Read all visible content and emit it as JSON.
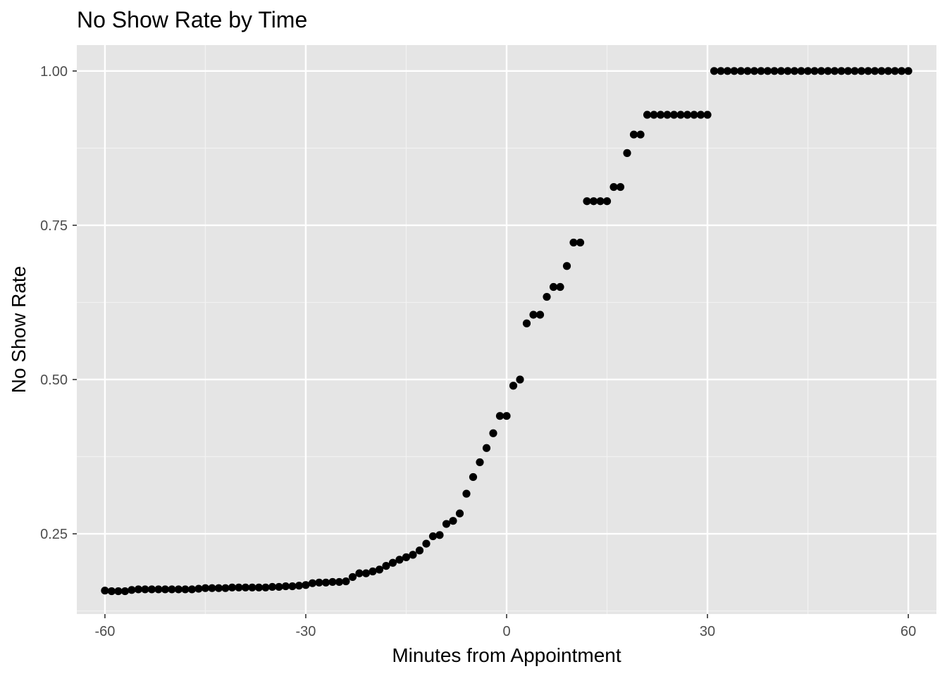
{
  "chart_data": {
    "type": "scatter",
    "title": "No Show Rate by Time",
    "xlabel": "Minutes from Appointment",
    "ylabel": "No Show Rate",
    "xlim": [
      -64.2,
      64.2
    ],
    "ylim": [
      0.12,
      1.042
    ],
    "x_ticks": [
      -60,
      -30,
      0,
      30,
      60
    ],
    "x_tick_labels": [
      "-60",
      "-30",
      "0",
      "30",
      "60"
    ],
    "y_ticks": [
      0.25,
      0.5,
      0.75,
      1.0
    ],
    "y_tick_labels": [
      "0.25",
      "0.50",
      "0.75",
      "1.00"
    ],
    "grid": true,
    "point_color": "#000000",
    "panel_color": "#e5e5e5",
    "points": [
      [
        -60,
        0.158
      ],
      [
        -59,
        0.157
      ],
      [
        -58,
        0.157
      ],
      [
        -57,
        0.157
      ],
      [
        -56,
        0.159
      ],
      [
        -55,
        0.16
      ],
      [
        -54,
        0.16
      ],
      [
        -53,
        0.16
      ],
      [
        -52,
        0.16
      ],
      [
        -51,
        0.16
      ],
      [
        -50,
        0.16
      ],
      [
        -49,
        0.16
      ],
      [
        -48,
        0.16
      ],
      [
        -47,
        0.16
      ],
      [
        -46,
        0.161
      ],
      [
        -45,
        0.162
      ],
      [
        -44,
        0.162
      ],
      [
        -43,
        0.162
      ],
      [
        -42,
        0.162
      ],
      [
        -41,
        0.163
      ],
      [
        -40,
        0.163
      ],
      [
        -39,
        0.163
      ],
      [
        -38,
        0.163
      ],
      [
        -37,
        0.163
      ],
      [
        -36,
        0.163
      ],
      [
        -35,
        0.164
      ],
      [
        -34,
        0.164
      ],
      [
        -33,
        0.165
      ],
      [
        -32,
        0.165
      ],
      [
        -31,
        0.166
      ],
      [
        -30,
        0.167
      ],
      [
        -29,
        0.17
      ],
      [
        -28,
        0.171
      ],
      [
        -27,
        0.171
      ],
      [
        -26,
        0.172
      ],
      [
        -25,
        0.172
      ],
      [
        -24,
        0.173
      ],
      [
        -23,
        0.18
      ],
      [
        -22,
        0.186
      ],
      [
        -21,
        0.186
      ],
      [
        -20,
        0.189
      ],
      [
        -19,
        0.192
      ],
      [
        -18,
        0.198
      ],
      [
        -17,
        0.203
      ],
      [
        -16,
        0.208
      ],
      [
        -15,
        0.212
      ],
      [
        -14,
        0.216
      ],
      [
        -13,
        0.223
      ],
      [
        -12,
        0.234
      ],
      [
        -11,
        0.246
      ],
      [
        -10,
        0.248
      ],
      [
        -9,
        0.266
      ],
      [
        -8,
        0.271
      ],
      [
        -7,
        0.283
      ],
      [
        -6,
        0.315
      ],
      [
        -5,
        0.342
      ],
      [
        -4,
        0.366
      ],
      [
        -3,
        0.389
      ],
      [
        -2,
        0.413
      ],
      [
        -1,
        0.441
      ],
      [
        0,
        0.441
      ],
      [
        1,
        0.49
      ],
      [
        2,
        0.5
      ],
      [
        3,
        0.591
      ],
      [
        4,
        0.605
      ],
      [
        5,
        0.605
      ],
      [
        6,
        0.634
      ],
      [
        7,
        0.65
      ],
      [
        8,
        0.65
      ],
      [
        9,
        0.684
      ],
      [
        10,
        0.722
      ],
      [
        11,
        0.722
      ],
      [
        12,
        0.789
      ],
      [
        13,
        0.789
      ],
      [
        14,
        0.789
      ],
      [
        15,
        0.789
      ],
      [
        16,
        0.812
      ],
      [
        17,
        0.812
      ],
      [
        18,
        0.867
      ],
      [
        19,
        0.897
      ],
      [
        20,
        0.897
      ],
      [
        21,
        0.929
      ],
      [
        22,
        0.929
      ],
      [
        23,
        0.929
      ],
      [
        24,
        0.929
      ],
      [
        25,
        0.929
      ],
      [
        26,
        0.929
      ],
      [
        27,
        0.929
      ],
      [
        28,
        0.929
      ],
      [
        29,
        0.929
      ],
      [
        30,
        0.929
      ],
      [
        31,
        1.0
      ],
      [
        32,
        1.0
      ],
      [
        33,
        1.0
      ],
      [
        34,
        1.0
      ],
      [
        35,
        1.0
      ],
      [
        36,
        1.0
      ],
      [
        37,
        1.0
      ],
      [
        38,
        1.0
      ],
      [
        39,
        1.0
      ],
      [
        40,
        1.0
      ],
      [
        41,
        1.0
      ],
      [
        42,
        1.0
      ],
      [
        43,
        1.0
      ],
      [
        44,
        1.0
      ],
      [
        45,
        1.0
      ],
      [
        46,
        1.0
      ],
      [
        47,
        1.0
      ],
      [
        48,
        1.0
      ],
      [
        49,
        1.0
      ],
      [
        50,
        1.0
      ],
      [
        51,
        1.0
      ],
      [
        52,
        1.0
      ],
      [
        53,
        1.0
      ],
      [
        54,
        1.0
      ],
      [
        55,
        1.0
      ],
      [
        56,
        1.0
      ],
      [
        57,
        1.0
      ],
      [
        58,
        1.0
      ],
      [
        59,
        1.0
      ],
      [
        60,
        1.0
      ]
    ]
  }
}
